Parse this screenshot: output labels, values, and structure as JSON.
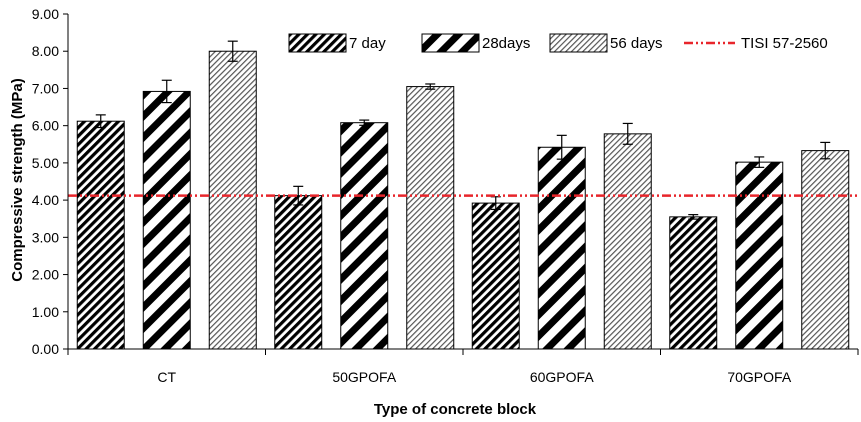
{
  "chart_data": {
    "type": "bar",
    "title": "",
    "xlabel": "Type of concrete block",
    "ylabel": "Compressive strength (MPa)",
    "ylim": [
      0,
      9
    ],
    "yticks": [
      "0.00",
      "1.00",
      "2.00",
      "3.00",
      "4.00",
      "5.00",
      "6.00",
      "7.00",
      "8.00",
      "9.00"
    ],
    "categories": [
      "CT",
      "50GPOFA",
      "60GPOFA",
      "70GPOFA"
    ],
    "series": [
      {
        "name": "7 day",
        "pattern": "dense-diagonal",
        "values": [
          6.12,
          4.12,
          3.92,
          3.55
        ],
        "errors": [
          0.17,
          0.25,
          0.17,
          0.06
        ]
      },
      {
        "name": "28days",
        "pattern": "wide-diagonal",
        "values": [
          6.92,
          6.08,
          5.42,
          5.02
        ],
        "errors": [
          0.3,
          0.07,
          0.32,
          0.14
        ]
      },
      {
        "name": "56 days",
        "pattern": "fine-diagonal",
        "values": [
          8.0,
          7.05,
          5.78,
          5.33
        ],
        "errors": [
          0.27,
          0.07,
          0.28,
          0.22
        ]
      }
    ],
    "reference_line": {
      "name": "TISI 57-2560",
      "value": 4.12,
      "color": "#e8252b",
      "style": "dash-dot-dot"
    },
    "grid": false,
    "legend_position": "top-right"
  }
}
